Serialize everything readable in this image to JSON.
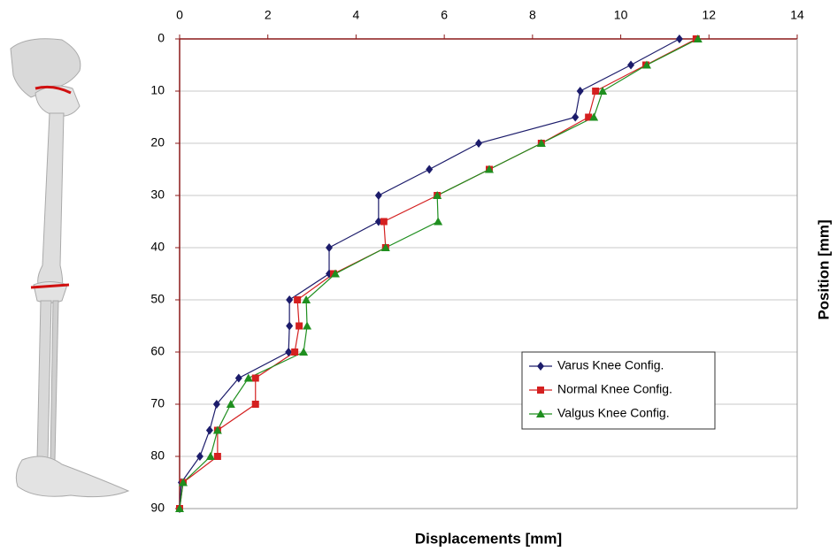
{
  "chart_data": {
    "type": "line",
    "x_label": "Displacements [mm]",
    "y_label": "Position [mm]",
    "y": [
      0,
      5,
      10,
      15,
      20,
      25,
      30,
      35,
      40,
      45,
      50,
      55,
      60,
      65,
      70,
      75,
      80,
      85,
      90
    ],
    "series": [
      {
        "name": "Varus Knee Config.",
        "color": "#1c1c6b",
        "marker": "diamond",
        "values": [
          11.33,
          10.23,
          9.08,
          8.97,
          6.78,
          5.66,
          4.51,
          4.51,
          3.39,
          3.39,
          2.49,
          2.49,
          2.47,
          1.34,
          0.84,
          0.68,
          0.46,
          0.04,
          0
        ]
      },
      {
        "name": "Normal Knee Config.",
        "color": "#d42020",
        "marker": "square",
        "values": [
          11.71,
          10.57,
          9.43,
          9.27,
          8.2,
          7.02,
          5.84,
          4.63,
          4.67,
          3.49,
          2.67,
          2.71,
          2.61,
          1.72,
          1.72,
          0.86,
          0.86,
          0.08,
          0
        ]
      },
      {
        "name": "Valgus Knee Config.",
        "color": "#1f8f1f",
        "marker": "triangle",
        "values": [
          11.75,
          10.59,
          9.59,
          9.39,
          8.2,
          7.02,
          5.84,
          5.86,
          4.67,
          3.53,
          2.87,
          2.89,
          2.81,
          1.56,
          1.16,
          0.86,
          0.7,
          0.08,
          0
        ]
      }
    ],
    "xlim": [
      0,
      14
    ],
    "xticks": [
      0,
      2,
      4,
      6,
      8,
      10,
      12,
      14
    ],
    "ylim": [
      0,
      90
    ],
    "yticks": [
      0,
      10,
      20,
      30,
      40,
      50,
      60,
      70,
      80,
      90
    ],
    "y_inverted": true,
    "x_axis_position": "top",
    "grid": true,
    "legend": "lower right"
  }
}
